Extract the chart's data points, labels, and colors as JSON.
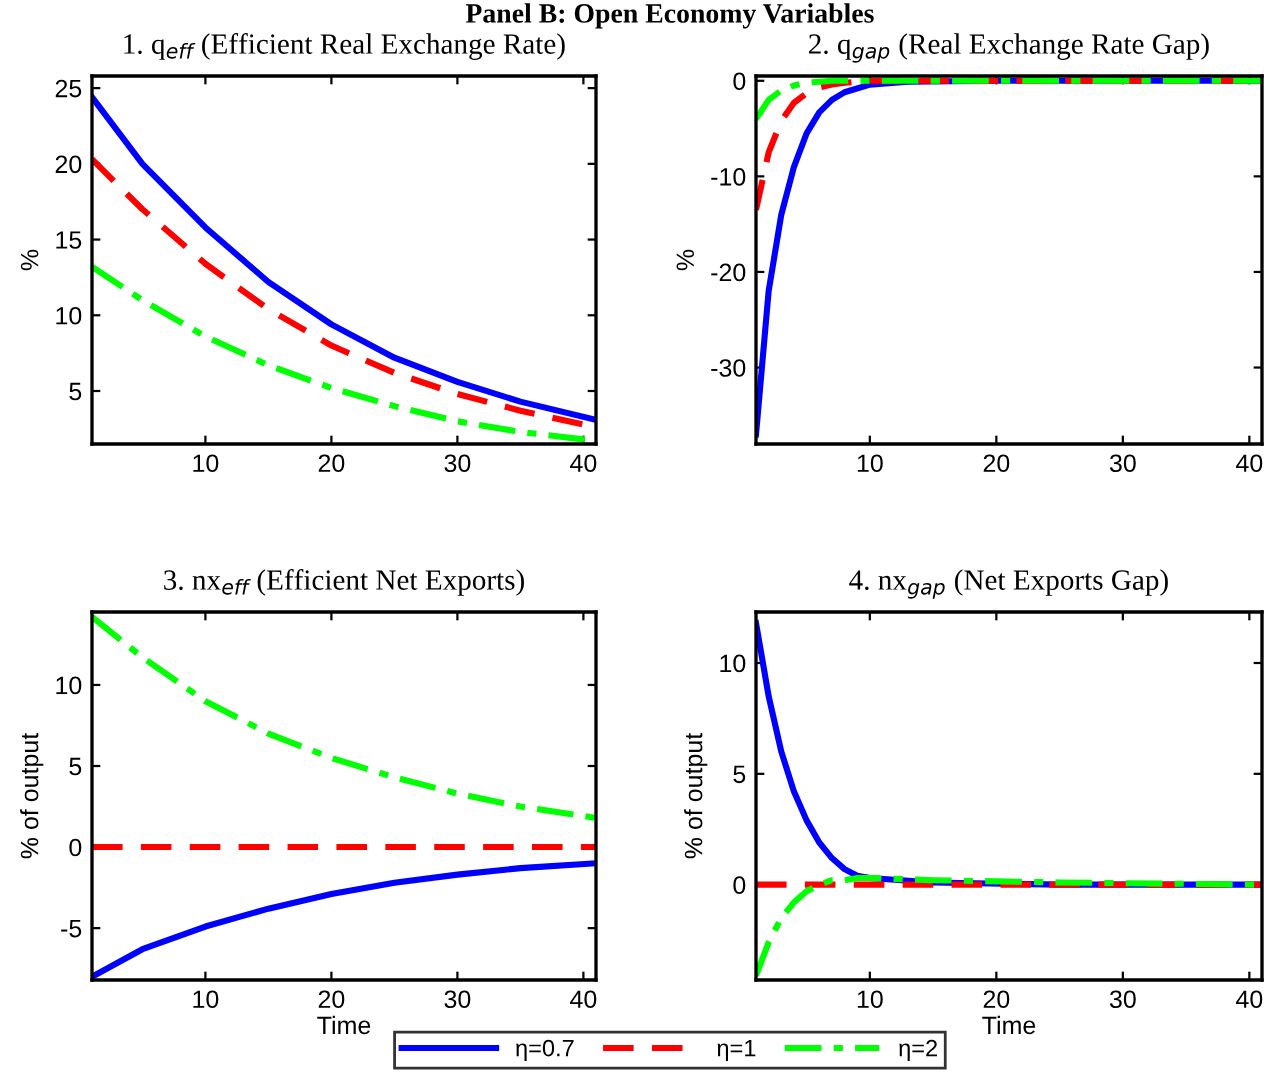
{
  "chart_data": [
    {
      "type": "line",
      "title": "1. q$_{eff}$ (Efficient Real Exchange Rate)",
      "ylabel": "%",
      "annotations": [
        "Panel B: Open Economy Variables"
      ],
      "xlim": [
        1,
        41
      ],
      "xticks": [
        10,
        20,
        30,
        40
      ],
      "ylim": [
        1.5,
        25.8
      ],
      "yticks": [
        5,
        10,
        15,
        20,
        25
      ],
      "grid": false,
      "legend": "bottom",
      "x": [
        1,
        5,
        10,
        15,
        20,
        25,
        30,
        35,
        41
      ],
      "series": [
        {
          "name": "η=0.7",
          "color": "#0000ff",
          "line_style": "solid",
          "values": [
            24.4,
            20.0,
            15.8,
            12.2,
            9.4,
            7.2,
            5.6,
            4.3,
            3.1
          ]
        },
        {
          "name": "η=1",
          "color": "#ff0000",
          "line_style": "dashed",
          "values": [
            20.3,
            17.0,
            13.4,
            10.4,
            8.0,
            6.2,
            4.8,
            3.7,
            2.6
          ]
        },
        {
          "name": "η=2",
          "color": "#00ff00",
          "line_style": "dashdot",
          "values": [
            13.2,
            11.0,
            8.6,
            6.7,
            5.2,
            4.0,
            3.0,
            2.3,
            1.7
          ]
        }
      ]
    },
    {
      "type": "line",
      "title": "2. q$_{gap}$ (Real Exchange Rate Gap)",
      "ylabel": "%",
      "xlim": [
        1,
        41
      ],
      "xticks": [
        10,
        20,
        30,
        40
      ],
      "ylim": [
        -38,
        0.5
      ],
      "yticks": [
        {
          "value": -30,
          "label": "-30"
        },
        {
          "value": -20,
          "label": "-20"
        },
        {
          "value": -10,
          "label": "-10"
        },
        0
      ],
      "grid": false,
      "x": [
        1,
        2,
        3,
        4,
        5,
        6,
        7,
        8,
        10,
        13,
        20,
        30,
        41
      ],
      "series": [
        {
          "color": "#0000ff",
          "line_style": "solid",
          "values": [
            -37,
            -22,
            -14,
            -9,
            -5.5,
            -3.3,
            -2,
            -1.2,
            -0.4,
            -0.1,
            0,
            0,
            0
          ]
        },
        {
          "color": "#ff0000",
          "line_style": "dashed",
          "values": [
            -13.5,
            -7.5,
            -4.2,
            -2.3,
            -1.3,
            -0.7,
            -0.4,
            -0.2,
            0,
            0,
            0,
            0,
            0
          ]
        },
        {
          "color": "#00ff00",
          "line_style": "dashdot",
          "values": [
            -4,
            -2,
            -1,
            -0.5,
            -0.2,
            -0.1,
            0,
            0,
            0,
            0,
            0,
            0,
            0
          ]
        }
      ]
    },
    {
      "type": "line",
      "title": "3. nx$_{eff}$ (Efficient Net Exports)",
      "xlabel": "Time",
      "ylabel": "% of output",
      "xlim": [
        1,
        41
      ],
      "xticks": [
        10,
        20,
        30,
        40
      ],
      "ylim": [
        -8.2,
        14.5
      ],
      "yticks": [
        {
          "value": -5,
          "label": "-5"
        },
        0,
        5,
        10
      ],
      "grid": false,
      "x": [
        1,
        5,
        10,
        15,
        20,
        25,
        30,
        35,
        41
      ],
      "series": [
        {
          "color": "#0000ff",
          "line_style": "solid",
          "values": [
            -8,
            -6.3,
            -4.9,
            -3.8,
            -2.9,
            -2.2,
            -1.7,
            -1.3,
            -1
          ]
        },
        {
          "color": "#ff0000",
          "line_style": "dashed",
          "values": [
            0,
            0,
            0,
            0,
            0,
            0,
            0,
            0,
            0
          ]
        },
        {
          "color": "#00ff00",
          "line_style": "dashdot",
          "values": [
            14.2,
            11.7,
            9.0,
            7.0,
            5.5,
            4.3,
            3.3,
            2.5,
            1.8
          ]
        }
      ]
    },
    {
      "type": "line",
      "title": "4. nx$_{gap}$ (Net Exports Gap)",
      "xlabel": "Time",
      "ylabel": "% of output",
      "xlim": [
        1,
        41
      ],
      "xticks": [
        10,
        20,
        30,
        40
      ],
      "ylim": [
        -4.3,
        12.3
      ],
      "yticks": [
        0,
        5,
        10
      ],
      "grid": false,
      "x": [
        1,
        2,
        3,
        4,
        5,
        6,
        7,
        8,
        9,
        10,
        15,
        25,
        41
      ],
      "series": [
        {
          "color": "#0000ff",
          "line_style": "solid",
          "values": [
            11.8,
            8.5,
            6.0,
            4.2,
            2.9,
            1.9,
            1.2,
            0.7,
            0.4,
            0.3,
            0.1,
            0,
            0
          ]
        },
        {
          "color": "#ff0000",
          "line_style": "dashed",
          "values": [
            0,
            0,
            0,
            0,
            0,
            0,
            0,
            0,
            0,
            0,
            0,
            0,
            0
          ]
        },
        {
          "color": "#00ff00",
          "line_style": "dashdot",
          "values": [
            -4.1,
            -2.6,
            -1.5,
            -0.8,
            -0.3,
            0,
            0.2,
            0.2,
            0.3,
            0.3,
            0.2,
            0.1,
            0
          ]
        }
      ]
    }
  ]
}
